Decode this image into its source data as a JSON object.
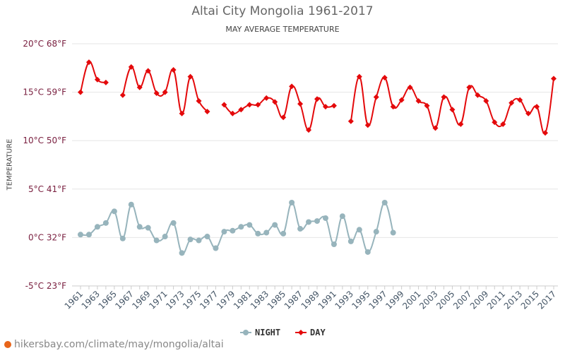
{
  "chart_data": {
    "type": "line",
    "title": "Altai City Mongolia 1961-2017",
    "subtitle": "MAY AVERAGE TEMPERATURE",
    "ylabel": "TEMPERATURE",
    "xlabel": "",
    "x": [
      1961,
      1962,
      1963,
      1964,
      1965,
      1966,
      1967,
      1968,
      1969,
      1970,
      1971,
      1972,
      1973,
      1974,
      1975,
      1976,
      1977,
      1978,
      1979,
      1980,
      1981,
      1982,
      1983,
      1984,
      1985,
      1986,
      1987,
      1988,
      1989,
      1990,
      1991,
      1992,
      1993,
      1994,
      1995,
      1996,
      1997,
      1998,
      1999,
      2000,
      2001,
      2002,
      2003,
      2004,
      2005,
      2006,
      2007,
      2008,
      2009,
      2010,
      2011,
      2012,
      2013,
      2014,
      2015,
      2016,
      2017
    ],
    "x_tick_labels": [
      "1961",
      "1963",
      "1965",
      "1967",
      "1969",
      "1971",
      "1973",
      "1975",
      "1977",
      "1979",
      "1981",
      "1983",
      "1985",
      "1987",
      "1989",
      "1991",
      "1993",
      "1995",
      "1997",
      "1999",
      "2001",
      "2003",
      "2005",
      "2007",
      "2009",
      "2011",
      "2013",
      "2015",
      "2017"
    ],
    "ylim": [
      -5,
      20
    ],
    "y_tick_labels": [
      "20°C 68°F",
      "15°C 59°F",
      "10°C 50°F",
      "5°C 41°F",
      "0°C 32°F",
      "-5°C 23°F"
    ],
    "y_tick_values": [
      20,
      15,
      10,
      5,
      0,
      -5
    ],
    "grid": "horizontal",
    "legend_position": "bottom",
    "series": [
      {
        "name": "NIGHT",
        "color": "#97b4bc",
        "marker": "circle",
        "values": [
          0.3,
          0.3,
          1.1,
          1.5,
          2.7,
          -0.1,
          3.4,
          1.1,
          1.0,
          -0.3,
          0.1,
          1.5,
          -1.6,
          -0.2,
          -0.3,
          0.1,
          -1.1,
          0.6,
          0.7,
          1.1,
          1.3,
          0.4,
          0.5,
          1.3,
          0.4,
          3.6,
          0.9,
          1.6,
          1.7,
          2.0,
          -0.7,
          2.2,
          -0.4,
          0.8,
          -1.5,
          0.6,
          3.6,
          0.5,
          null,
          null,
          null,
          null,
          null,
          null,
          null,
          null,
          null,
          null,
          null,
          null,
          null,
          null,
          null,
          null,
          null,
          null,
          null
        ]
      },
      {
        "name": "DAY",
        "color": "#e4090b",
        "marker": "diamond",
        "values": [
          15.0,
          18.1,
          16.3,
          16.0,
          null,
          14.7,
          17.6,
          15.5,
          17.2,
          14.9,
          15.0,
          17.3,
          12.8,
          16.6,
          14.1,
          13.0,
          null,
          13.7,
          12.8,
          13.2,
          13.7,
          13.7,
          14.4,
          14.0,
          12.4,
          15.6,
          13.8,
          11.1,
          14.3,
          13.5,
          13.6,
          null,
          12.0,
          16.6,
          11.6,
          14.5,
          16.5,
          13.5,
          14.2,
          15.5,
          14.1,
          13.6,
          11.3,
          14.5,
          13.2,
          11.7,
          15.5,
          14.7,
          14.1,
          11.9,
          11.7,
          13.9,
          14.2,
          12.8,
          13.5,
          10.8,
          16.4
        ]
      }
    ]
  },
  "footer": {
    "text": "hikersbay.com/climate/may/mongolia/altai"
  }
}
